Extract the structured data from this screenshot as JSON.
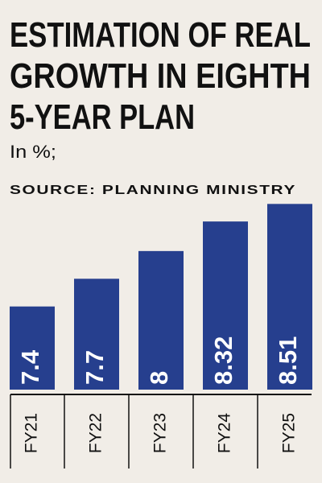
{
  "chart_data": {
    "type": "bar",
    "title": [
      "ESTIMATION OF REAL",
      "GROWTH IN EIGHTH",
      "5-YEAR PLAN"
    ],
    "subtitle": "In %;",
    "source": "SOURCE: PLANNING MINISTRY",
    "categories": [
      "FY21",
      "FY22",
      "FY23",
      "FY24",
      "FY25"
    ],
    "values": [
      7.4,
      7.7,
      8,
      8.32,
      8.51
    ],
    "color": "#263f8e",
    "ylim": [
      6.5,
      8.6
    ]
  }
}
